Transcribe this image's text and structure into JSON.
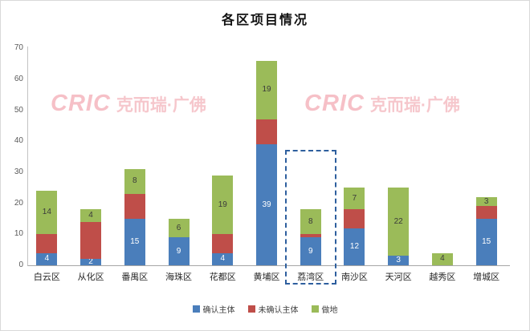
{
  "title": "各区项目情况",
  "watermark": {
    "logo": "CRIC",
    "brand": "克而瑞·广佛"
  },
  "highlight_category": "荔湾区",
  "highlight_color": "#2e5f9e",
  "chart_data": {
    "type": "bar",
    "stacked": true,
    "title": "各区项目情况",
    "categories": [
      "白云区",
      "从化区",
      "番禺区",
      "海珠区",
      "花都区",
      "黄埔区",
      "荔湾区",
      "南沙区",
      "天河区",
      "越秀区",
      "增城区"
    ],
    "series": [
      {
        "name": "确认主体",
        "color": "#4a7ebb",
        "label_color": "#ffffff",
        "values": [
          4,
          2,
          15,
          9,
          4,
          39,
          9,
          12,
          3,
          0,
          15
        ],
        "labels": [
          "4",
          "2",
          "15",
          "9",
          "4",
          "39",
          "9",
          "12",
          "3",
          "",
          "15"
        ]
      },
      {
        "name": "未确认主体",
        "color": "#bf4e49",
        "label_color": "#ffffff",
        "values": [
          6,
          12,
          8,
          0,
          6,
          8,
          1,
          6,
          0,
          0,
          4
        ],
        "labels": [
          "",
          "",
          "",
          "",
          "",
          "",
          "",
          "",
          "",
          "",
          ""
        ]
      },
      {
        "name": "做地",
        "color": "#9bbb59",
        "label_color": "#3a3a3a",
        "values": [
          14,
          4,
          8,
          6,
          19,
          19,
          8,
          7,
          22,
          4,
          3
        ],
        "labels": [
          "14",
          "4",
          "8",
          "6",
          "19",
          "19",
          "8",
          "7",
          "22",
          "4",
          "3"
        ]
      }
    ],
    "ylim": [
      0,
      70
    ],
    "yticks": [
      0,
      10,
      20,
      30,
      40,
      50,
      60,
      70
    ],
    "grid": false,
    "legend_position": "bottom"
  }
}
